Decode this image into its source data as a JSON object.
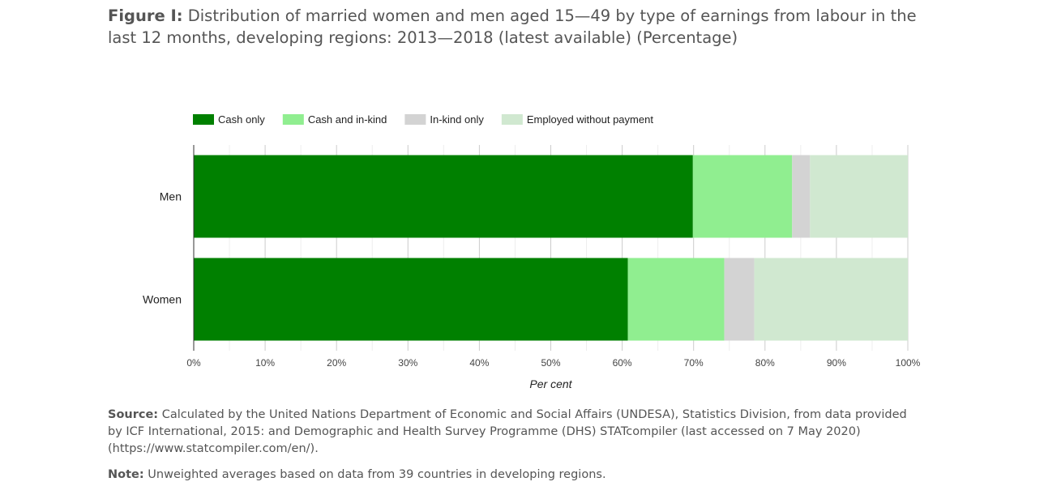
{
  "title": {
    "prefix": "Figure I:",
    "text": "Distribution of married women and men aged 15—49 by type of earnings from labour in the last 12 months, developing regions: 2013—2018 (latest available) (Percentage)"
  },
  "chart_data": {
    "type": "bar",
    "orientation": "horizontal",
    "stacked": true,
    "categories": [
      "Men",
      "Women"
    ],
    "series": [
      {
        "name": "Cash only",
        "color": "#008000",
        "values": [
          69.9,
          60.8
        ]
      },
      {
        "name": "Cash and in-kind",
        "color": "#90ee90",
        "values": [
          13.9,
          13.5
        ]
      },
      {
        "name": "In-kind only",
        "color": "#d3d3d3",
        "values": [
          2.5,
          4.2
        ]
      },
      {
        "name": "Employed without payment",
        "color": "#d0e8d0",
        "values": [
          13.7,
          21.5
        ]
      }
    ],
    "xlabel": "Per cent",
    "xlim": [
      0,
      100
    ],
    "xticks": [
      "0%",
      "10%",
      "20%",
      "30%",
      "40%",
      "50%",
      "60%",
      "70%",
      "80%",
      "90%",
      "100%"
    ],
    "legend_position": "top-left",
    "grid": true
  },
  "source": {
    "label": "Source:",
    "text": "Calculated by the United Nations Department of Economic and Social Affairs (UNDESA), Statistics Division, from data provided by ICF International, 2015: and Demographic and Health Survey Programme (DHS) STATcompiler (last accessed on 7 May 2020) (https://www.statcompiler.com/en/)."
  },
  "note": {
    "label": "Note:",
    "text": "Unweighted averages based on data from 39 countries in developing regions."
  }
}
